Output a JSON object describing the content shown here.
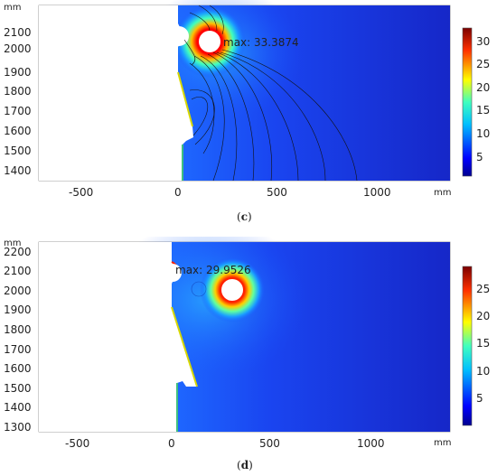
{
  "panels": [
    {
      "caption_letter": "c",
      "unit_top": "mm",
      "unit_x": "mm",
      "max_label": "max: 33.3874",
      "y_ticks": [
        "2100",
        "2000",
        "1900",
        "1800",
        "1700",
        "1600",
        "1500",
        "1400"
      ],
      "x_ticks": [
        "-500",
        "0",
        "500",
        "1000"
      ],
      "colorbar_ticks": [
        "30",
        "25",
        "20",
        "15",
        "10",
        "5"
      ]
    },
    {
      "caption_letter": "d",
      "unit_top": "mm",
      "unit_x": "mm",
      "max_label": "max: 29.9526",
      "y_ticks": [
        "2200",
        "2100",
        "2000",
        "1900",
        "1800",
        "1700",
        "1600",
        "1500",
        "1400",
        "1300"
      ],
      "x_ticks": [
        "-500",
        "0",
        "500",
        "1000"
      ],
      "colorbar_ticks": [
        "25",
        "20",
        "15",
        "10",
        "5"
      ]
    }
  ],
  "colors": {
    "field_low": "#1a3fe0",
    "field_high": "#c40000",
    "colorbar_top": "#7a0000",
    "colorbar_bottom": "#00008f"
  }
}
